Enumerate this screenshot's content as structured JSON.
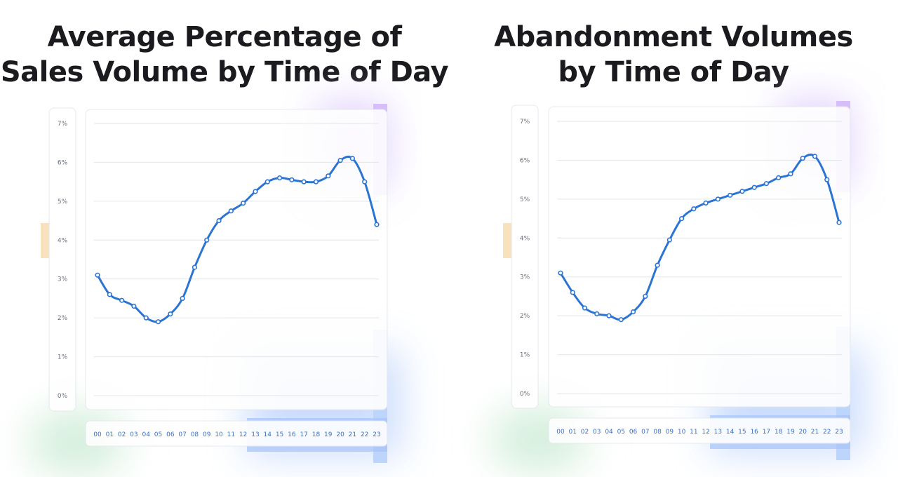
{
  "chart_data": [
    {
      "type": "line",
      "title": [
        "Average  Percentage of",
        "Sales Volume by Time of Day"
      ],
      "x": [
        "00",
        "01",
        "02",
        "03",
        "04",
        "05",
        "06",
        "07",
        "08",
        "09",
        "10",
        "11",
        "12",
        "13",
        "14",
        "15",
        "16",
        "17",
        "18",
        "19",
        "20",
        "21",
        "22",
        "23"
      ],
      "series": [
        {
          "values": [
            3.1,
            2.6,
            2.45,
            2.3,
            2.0,
            1.9,
            2.1,
            2.5,
            3.3,
            4.0,
            4.5,
            4.75,
            4.95,
            5.25,
            5.5,
            5.6,
            5.55,
            5.5,
            5.5,
            5.65,
            6.05,
            6.1,
            5.5,
            4.4
          ]
        }
      ],
      "y_ticks": [
        "0%",
        "1%",
        "2%",
        "3%",
        "4%",
        "5%",
        "6%",
        "7%"
      ],
      "ylim": [
        0,
        7
      ],
      "grid": true,
      "line_color": "#2b74d4"
    },
    {
      "type": "line",
      "title": [
        "Abandonment  Volumes",
        "by Time  of Day"
      ],
      "x": [
        "00",
        "01",
        "02",
        "03",
        "04",
        "05",
        "06",
        "07",
        "08",
        "09",
        "10",
        "11",
        "12",
        "13",
        "14",
        "15",
        "16",
        "17",
        "18",
        "19",
        "20",
        "21",
        "22",
        "23"
      ],
      "series": [
        {
          "values": [
            3.1,
            2.6,
            2.2,
            2.05,
            2.0,
            1.9,
            2.1,
            2.5,
            3.3,
            3.95,
            4.5,
            4.75,
            4.9,
            5.0,
            5.1,
            5.2,
            5.3,
            5.4,
            5.55,
            5.65,
            6.05,
            6.1,
            5.5,
            4.4
          ]
        }
      ],
      "y_ticks": [
        "0%",
        "1%",
        "2%",
        "3%",
        "4%",
        "5%",
        "6%",
        "7%"
      ],
      "ylim": [
        0,
        7
      ],
      "grid": true,
      "line_color": "#2b74d4"
    }
  ]
}
